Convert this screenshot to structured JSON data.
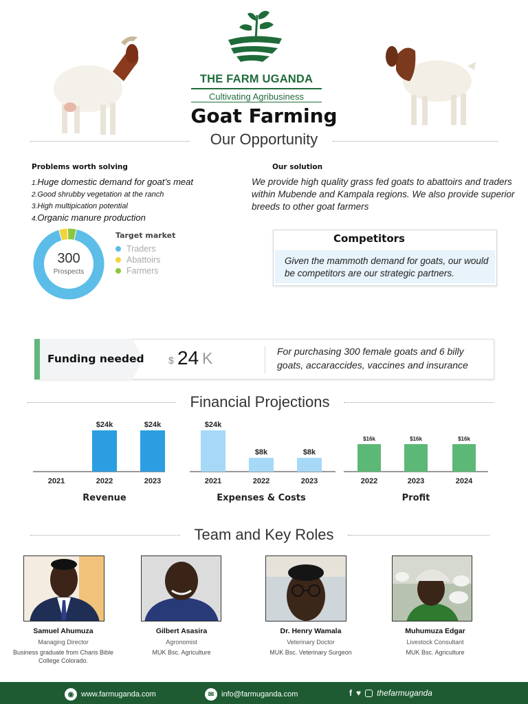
{
  "brand": {
    "name": "THE FARM UGANDA",
    "tagline": "Cultivating Agribusiness"
  },
  "header": {
    "title": "Goat Farming",
    "subtitle": "Our Opportunity"
  },
  "problems": {
    "heading": "Problems worth solving",
    "items": [
      {
        "num": "1.",
        "text": "Huge domestic demand for goat’s meat"
      },
      {
        "num": "2.",
        "text": "Good shrubby vegetation at the ranch"
      },
      {
        "num": "3.",
        "text": "High multipication potential"
      },
      {
        "num": "4.",
        "text": "Organic manure production"
      }
    ]
  },
  "solution": {
    "heading": "Our solution",
    "text": "We provide high quality grass fed goats to abattoirs and  traders within Mubende and Kampala regions. We also provide superior breeds to other goat farmers"
  },
  "target_market": {
    "title": "Target market",
    "center_value": "300",
    "center_label": "Prospects",
    "segments": [
      {
        "label": "Traders",
        "share": 0.92,
        "color": "#5bbde8"
      },
      {
        "label": "Abattoirs",
        "share": 0.04,
        "color": "#f2d43c"
      },
      {
        "label": "Farmers",
        "share": 0.04,
        "color": "#8cc63f"
      }
    ]
  },
  "competitors": {
    "title": "Competitors",
    "text": "Given the mammoth demand for goats, our would be competitors are our strategic partners."
  },
  "funding": {
    "label": "Funding needed",
    "currency": "$",
    "amount": "24",
    "unit": "K",
    "description": "For purchasing 300 female goats and 6 billy goats, accaraccides, vaccines and insurance"
  },
  "financials": {
    "title": "Financial Projections"
  },
  "chart_data": [
    {
      "type": "bar",
      "title": "Revenue",
      "categories": [
        "2021",
        "2022",
        "2023"
      ],
      "values": [
        0,
        24,
        24
      ],
      "labels": [
        "",
        "$24k",
        "$24k"
      ],
      "color": "#2a9ee0",
      "ylim": [
        0,
        24
      ]
    },
    {
      "type": "bar",
      "title": "Expenses & Costs",
      "categories": [
        "2021",
        "2022",
        "2023"
      ],
      "values": [
        24,
        8,
        8
      ],
      "labels": [
        "$24k",
        "$8k",
        "$8k"
      ],
      "color": "#a6d8f7",
      "ylim": [
        0,
        24
      ]
    },
    {
      "type": "bar",
      "title": "Profit",
      "categories": [
        "2022",
        "2023",
        "2024"
      ],
      "values": [
        16,
        16,
        16
      ],
      "labels": [
        "$16k",
        "$16k",
        "$16k"
      ],
      "color": "#5cb877",
      "ylim": [
        0,
        24
      ]
    }
  ],
  "team": {
    "title": "Team and Key Roles",
    "members": [
      {
        "name": "Samuel Ahumuza",
        "role": "Managing Director",
        "edu": "Business graduate from Charis Bible College Colorado."
      },
      {
        "name": "Gilbert Asasira",
        "role": "Agronomist",
        "edu": "MUK Bsc. Agriculture"
      },
      {
        "name": "Dr. Henry Wamala",
        "role": "Veterinary Doctor",
        "edu": "MUK Bsc. Veterinary Surgeon"
      },
      {
        "name": "Muhumuza Edgar",
        "role": "Livestock Consultant",
        "edu": "MUK Bsc. Agriculture"
      }
    ]
  },
  "footer": {
    "website": "www.farmuganda.com",
    "email": "info@farmuganda.com",
    "social_handle": "thefarmuganda",
    "icons": [
      "globe-icon",
      "mail-icon",
      "facebook-icon",
      "twitter-icon",
      "instagram-icon"
    ]
  }
}
